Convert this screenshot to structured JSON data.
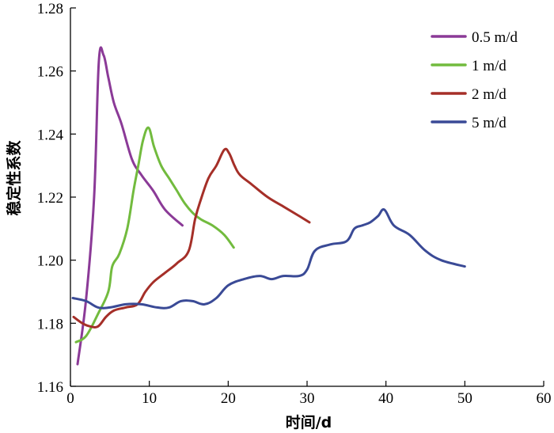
{
  "chart_data": {
    "type": "line",
    "xlabel": "时间/d",
    "ylabel": "稳定性系数",
    "xlim": [
      0,
      60
    ],
    "ylim": [
      1.16,
      1.28
    ],
    "xticks": [
      0,
      10,
      20,
      30,
      40,
      50,
      60
    ],
    "yticks": [
      1.16,
      1.18,
      1.2,
      1.22,
      1.24,
      1.26,
      1.28
    ],
    "ytick_labels": [
      "1.16",
      "1.18",
      "1.20",
      "1.22",
      "1.24",
      "1.26",
      "1.28"
    ],
    "legend_position": "top-right",
    "grid": false,
    "series": [
      {
        "name": "0.5 m/d",
        "color": "#8B3A97",
        "x": [
          0.9,
          2.0,
          3.0,
          3.6,
          4.2,
          4.8,
          5.5,
          6.5,
          7.8,
          9.0,
          10.5,
          12.0,
          14.2
        ],
        "y": [
          1.167,
          1.188,
          1.22,
          1.263,
          1.265,
          1.258,
          1.25,
          1.243,
          1.232,
          1.227,
          1.222,
          1.216,
          1.211
        ]
      },
      {
        "name": "1 m/d",
        "color": "#72BB3E",
        "x": [
          0.7,
          2.0,
          3.5,
          4.8,
          5.3,
          6.2,
          7.2,
          8.0,
          8.6,
          9.2,
          9.9,
          10.6,
          11.5,
          12.5,
          13.5,
          14.5,
          15.5,
          16.5,
          18.0,
          19.5,
          20.7
        ],
        "y": [
          1.174,
          1.176,
          1.183,
          1.19,
          1.198,
          1.202,
          1.21,
          1.222,
          1.23,
          1.238,
          1.242,
          1.236,
          1.23,
          1.226,
          1.222,
          1.218,
          1.215,
          1.213,
          1.211,
          1.208,
          1.204
        ]
      },
      {
        "name": "2 m/d",
        "color": "#A52F28",
        "x": [
          0.4,
          1.5,
          2.5,
          3.5,
          4.5,
          5.5,
          7.0,
          8.5,
          9.5,
          10.5,
          12.0,
          13.5,
          15.0,
          15.8,
          16.5,
          17.5,
          18.5,
          19.5,
          20.1,
          20.8,
          21.5,
          23.0,
          25.0,
          27.0,
          29.0,
          30.3
        ],
        "y": [
          1.182,
          1.18,
          1.179,
          1.179,
          1.182,
          1.184,
          1.185,
          1.186,
          1.19,
          1.193,
          1.196,
          1.199,
          1.203,
          1.213,
          1.219,
          1.226,
          1.23,
          1.235,
          1.234,
          1.23,
          1.227,
          1.224,
          1.22,
          1.217,
          1.214,
          1.212
        ]
      },
      {
        "name": "5 m/d",
        "color": "#3A4A96",
        "x": [
          0.3,
          2.0,
          3.5,
          5.0,
          7.0,
          9.0,
          11.0,
          12.5,
          14.0,
          15.5,
          17.0,
          18.5,
          20.0,
          22.0,
          24.0,
          25.5,
          27.0,
          29.0,
          30.0,
          31.0,
          33.0,
          35.0,
          36.0,
          37.0,
          38.0,
          39.0,
          39.8,
          41.0,
          43.0,
          45.0,
          47.0,
          50.0
        ],
        "y": [
          1.188,
          1.187,
          1.185,
          1.185,
          1.186,
          1.186,
          1.185,
          1.185,
          1.187,
          1.187,
          1.186,
          1.188,
          1.192,
          1.194,
          1.195,
          1.194,
          1.195,
          1.195,
          1.197,
          1.203,
          1.205,
          1.206,
          1.21,
          1.211,
          1.212,
          1.214,
          1.216,
          1.211,
          1.208,
          1.203,
          1.2,
          1.198
        ]
      }
    ]
  }
}
